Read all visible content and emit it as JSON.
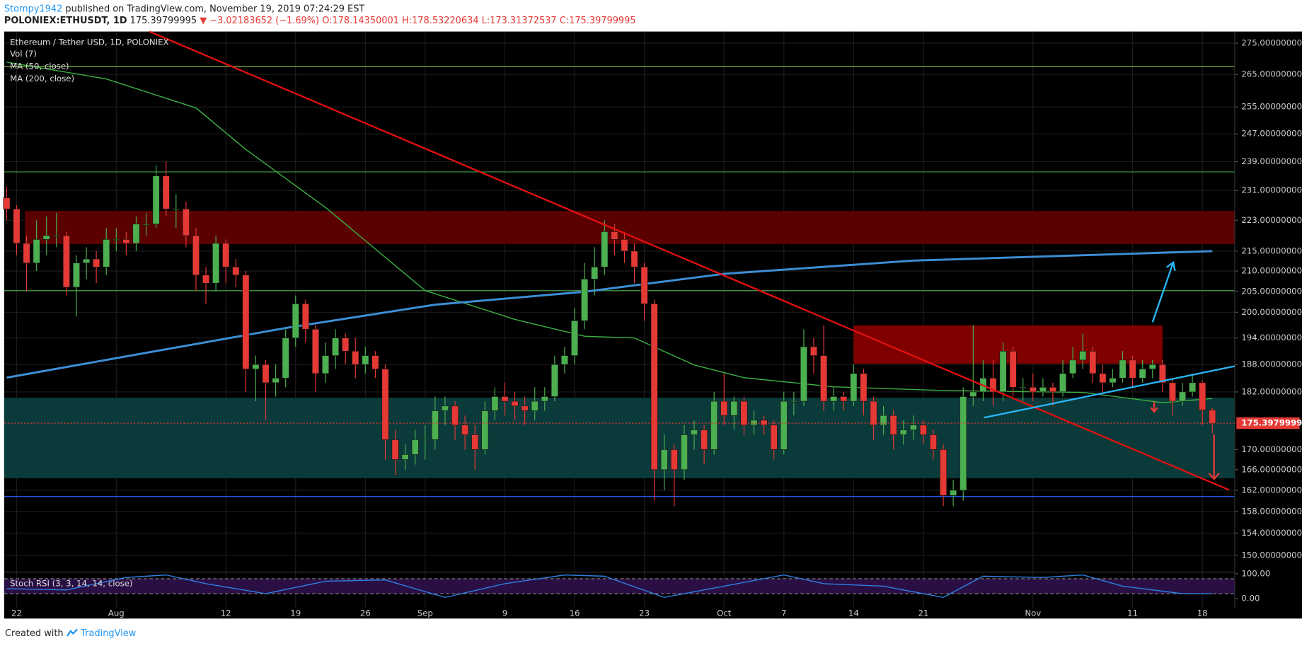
{
  "header": {
    "author": "Stompy1942",
    "published": " published on TradingView.com, November 19, 2019 07:24:29 EST",
    "symbol": "POLONIEX:ETHUSDT, 1D",
    "price": "175.39799995",
    "change": "▼ −3.02183652 (−1.69%)",
    "ohlc": [
      "O:178.14350001",
      "H:178.53220634",
      "L:173.31372537",
      "C:175.39799995"
    ]
  },
  "footer": {
    "created": "Created with",
    "brand": "TradingView"
  },
  "chart_data": {
    "type": "candlestick",
    "title": "Ethereum / Tether USD, 1D, POLONIEX",
    "volume_label": "Vol (7)",
    "log_scale": true,
    "grid": true,
    "up_color": "#4caf50",
    "down_color": "#e53935",
    "xlim": [
      -0.25,
      123.25
    ],
    "ylim": [
      147.2,
      278.8
    ],
    "xticks": [
      {
        "value": 1,
        "label": "22"
      },
      {
        "value": 11,
        "label": "Aug"
      },
      {
        "value": 22,
        "label": "12"
      },
      {
        "value": 29,
        "label": "19"
      },
      {
        "value": 36,
        "label": "26"
      },
      {
        "value": 42,
        "label": "Sep"
      },
      {
        "value": 50,
        "label": "9"
      },
      {
        "value": 57,
        "label": "16"
      },
      {
        "value": 64,
        "label": "23"
      },
      {
        "value": 72,
        "label": "Oct"
      },
      {
        "value": 78,
        "label": "7"
      },
      {
        "value": 85,
        "label": "14"
      },
      {
        "value": 92,
        "label": "21"
      },
      {
        "value": 103,
        "label": "Nov"
      },
      {
        "value": 113,
        "label": "11"
      },
      {
        "value": 120,
        "label": "18"
      }
    ],
    "yticks": [
      {
        "value": 275,
        "label": "275.00000000"
      },
      {
        "value": 265,
        "label": "265.00000000"
      },
      {
        "value": 255,
        "label": "255.00000000"
      },
      {
        "value": 247,
        "label": "247.00000000"
      },
      {
        "value": 239,
        "label": "239.00000000"
      },
      {
        "value": 231,
        "label": "231.00000000"
      },
      {
        "value": 223,
        "label": "223.00000000"
      },
      {
        "value": 215,
        "label": "215.00000000"
      },
      {
        "value": 210,
        "label": "210.00000000"
      },
      {
        "value": 205,
        "label": "205.00000000"
      },
      {
        "value": 200,
        "label": "200.00000000"
      },
      {
        "value": 194,
        "label": "194.00000000"
      },
      {
        "value": 188,
        "label": "188.00000000"
      },
      {
        "value": 182,
        "label": "182.00000000"
      },
      {
        "value": 170,
        "label": "170.00000000"
      },
      {
        "value": 166,
        "label": "166.00000000"
      },
      {
        "value": 162,
        "label": "162.00000000"
      },
      {
        "value": 158,
        "label": "158.00000000"
      },
      {
        "value": 154,
        "label": "154.00000000"
      },
      {
        "value": 150,
        "label": "150.00000000"
      }
    ],
    "candles": {
      "open": [
        229,
        226,
        217,
        212,
        218,
        219,
        219,
        206,
        212,
        213,
        211,
        218,
        218,
        217,
        222,
        222,
        235,
        226,
        226,
        219,
        209,
        207,
        217,
        211,
        209,
        187,
        188,
        184,
        185,
        194,
        202,
        196,
        186,
        190,
        194,
        191,
        188,
        190,
        187,
        172,
        168,
        169,
        172,
        172,
        178,
        179,
        175,
        173,
        170,
        178,
        181,
        180,
        179,
        178,
        180,
        181,
        188,
        190,
        198,
        208,
        211,
        220,
        218,
        215,
        211,
        202,
        166,
        170,
        166,
        173,
        174,
        170,
        180,
        177,
        180,
        175,
        176,
        175,
        170,
        180,
        180,
        192,
        190,
        180,
        181,
        180,
        186,
        180,
        175,
        177,
        173,
        174,
        175,
        173,
        170,
        161,
        162,
        181,
        182,
        185,
        182,
        191,
        183,
        183,
        182,
        183,
        182,
        186,
        189,
        191,
        186,
        184,
        185,
        189,
        185,
        187,
        188,
        184,
        180,
        182,
        184,
        178.1435
      ],
      "high": [
        232,
        227,
        219,
        223,
        224,
        225,
        220,
        214,
        216,
        215,
        221,
        221,
        220,
        224,
        225,
        238,
        239,
        230,
        228,
        221,
        211,
        219,
        218,
        213,
        210,
        190,
        189,
        188,
        196,
        204,
        203,
        197,
        193,
        196,
        195,
        194,
        192,
        191,
        188,
        174,
        171,
        174,
        175,
        181,
        181,
        180,
        177,
        175,
        180,
        183,
        184,
        182,
        181,
        183,
        183,
        190,
        192,
        201,
        212,
        216,
        223,
        222,
        220,
        217,
        212,
        203,
        173,
        171,
        175,
        176,
        175,
        182,
        186,
        181,
        181,
        178,
        177,
        176,
        182,
        182,
        196,
        194,
        197,
        183,
        182,
        188,
        187,
        181,
        179,
        178,
        176,
        177,
        176,
        174,
        171,
        164,
        183,
        197,
        189,
        189,
        193,
        192,
        185,
        186,
        185,
        184,
        189,
        192,
        195,
        192,
        188,
        187,
        191,
        190,
        189,
        189,
        189,
        185,
        184,
        186,
        184.5,
        178.5322
      ],
      "low": [
        223,
        214,
        205,
        210,
        214,
        216,
        204,
        199,
        208,
        207,
        209,
        215,
        214,
        215,
        219,
        221,
        224,
        221,
        216,
        205,
        202,
        205,
        207,
        206,
        182,
        180,
        176,
        181,
        183,
        192,
        193,
        182,
        184,
        187,
        188,
        185,
        186,
        185,
        168,
        165,
        166,
        167,
        168,
        170,
        175,
        172,
        170,
        166,
        169,
        176,
        177,
        176,
        175,
        176,
        178,
        180,
        186,
        188,
        196,
        204,
        209,
        214,
        212,
        207,
        198,
        160,
        162,
        159,
        164,
        170,
        167,
        169,
        175,
        174,
        173,
        173,
        173,
        168,
        169,
        177,
        179,
        186,
        178,
        178,
        178,
        179,
        177,
        172,
        173,
        170,
        171,
        172,
        171,
        168,
        159,
        159,
        160,
        179,
        180,
        179,
        180,
        181,
        180,
        180,
        181,
        179,
        181,
        185,
        187,
        184,
        182,
        183,
        184,
        183,
        184,
        185,
        182,
        177,
        179,
        181,
        175,
        173.3137
      ],
      "close": [
        226,
        217,
        212,
        218,
        219,
        219,
        206,
        212,
        213,
        211,
        218,
        218,
        217,
        222,
        222,
        235,
        226,
        226,
        219,
        209,
        207,
        217,
        211,
        209,
        187,
        188,
        184,
        185,
        194,
        202,
        196,
        186,
        190,
        194,
        191,
        188,
        190,
        187,
        172,
        168,
        169,
        172,
        172,
        178,
        179,
        175,
        173,
        170,
        178,
        181,
        180,
        179,
        178,
        180,
        181,
        188,
        190,
        198,
        208,
        211,
        220,
        218,
        215,
        211,
        202,
        166,
        170,
        166,
        173,
        174,
        170,
        180,
        177,
        180,
        175,
        176,
        175,
        170,
        180,
        180,
        192,
        190,
        180,
        181,
        180,
        186,
        180,
        175,
        177,
        173,
        174,
        175,
        173,
        170,
        161,
        162,
        181,
        182,
        185,
        182,
        191,
        183,
        183,
        182,
        183,
        182,
        186,
        189,
        191,
        186,
        184,
        185,
        189,
        185,
        187,
        188,
        184,
        180,
        182,
        184,
        178.14,
        175.398
      ]
    },
    "ma": [
      {
        "name": "MA (50, close)",
        "color": "#3cb043",
        "x": [
          0,
          10,
          19,
          24,
          32,
          42,
          51,
          58,
          63,
          69,
          74,
          83,
          94,
          108,
          116,
          121
        ],
        "values": [
          268.9,
          263.6,
          254.7,
          242.5,
          226.4,
          205.2,
          198.3,
          194.4,
          194,
          187.9,
          185.1,
          183.1,
          182.3,
          181.9,
          179.7,
          180.6
        ]
      },
      {
        "name": "MA (200, close)",
        "color": "#3d8fd6",
        "x": [
          0,
          28,
          43,
          58,
          72,
          91,
          121
        ],
        "values": [
          185.1,
          196.3,
          201.8,
          204.9,
          209.3,
          212.6,
          215
        ]
      }
    ],
    "stoch": {
      "name": "Stoch RSI (3, 3, 14, 14, close)",
      "color": "#2e7fe0",
      "ylim": [
        -36.7,
        103.3
      ],
      "yticks": [
        {
          "value": 100,
          "label": "100.00"
        },
        {
          "value": 0,
          "label": "0.00"
        }
      ],
      "x": [
        0,
        6,
        12,
        16,
        20,
        26,
        32,
        38,
        44,
        50,
        56,
        60,
        66,
        72,
        78,
        82,
        88,
        94,
        98,
        104,
        108,
        112,
        118,
        121
      ],
      "values": [
        40,
        35,
        85,
        95,
        60,
        20,
        70,
        75,
        5,
        60,
        95,
        90,
        5,
        50,
        95,
        60,
        50,
        5,
        90,
        85,
        95,
        50,
        20,
        20
      ]
    }
  }
}
